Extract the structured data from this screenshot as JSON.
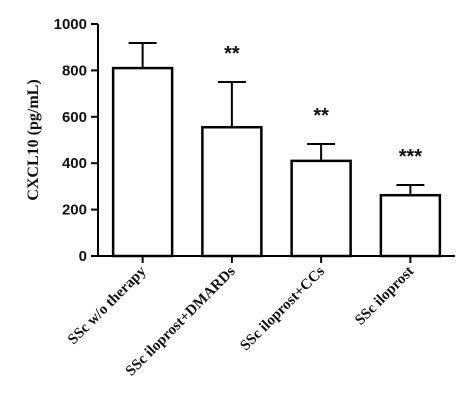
{
  "chart_data": {
    "type": "bar",
    "categories": [
      "SSc w/o therapy",
      "SSc iloprost+DMARDs",
      "SSc iloprost+CCs",
      "SSc iloprost"
    ],
    "values": [
      810,
      555,
      410,
      262
    ],
    "error_upper": [
      918,
      750,
      483,
      306
    ],
    "significance": [
      "",
      "**",
      "**",
      "***"
    ],
    "ylabel": "CXCL10 (pg/mL)",
    "ylim": [
      0,
      1000
    ],
    "yticks": [
      "0",
      "200",
      "400",
      "600",
      "800",
      "1000"
    ],
    "grid": false,
    "colors": {
      "bar_fill": "#ffffff",
      "stroke": "#000000"
    }
  }
}
